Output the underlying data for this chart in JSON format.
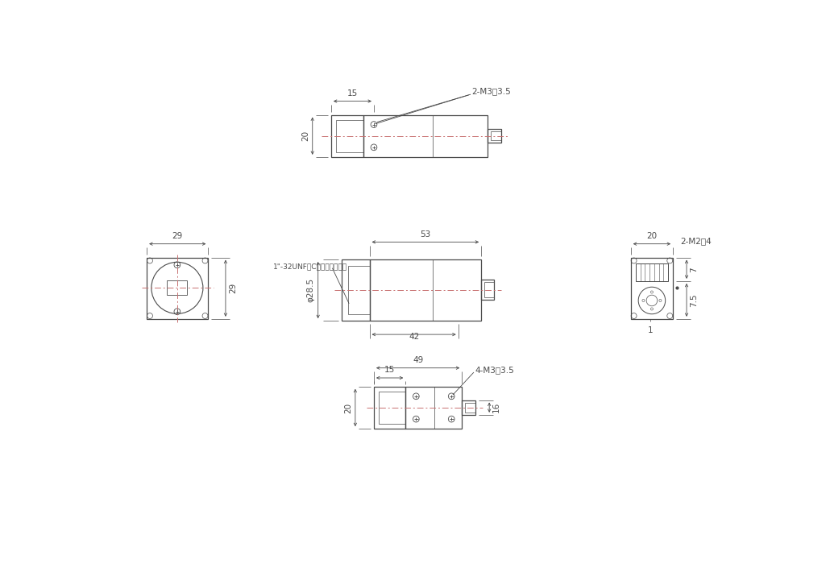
{
  "bg_color": "#ffffff",
  "line_color": "#4a4a4a",
  "dim_color": "#4a4a4a",
  "centerline_color": "#c87070",
  "note_top": "2-M3深3.5",
  "note_front_cmount": "1\"-32UNF（Cマウントネジ）",
  "note_right": "2-M2深4",
  "note_bottom": "4-M3深3.5",
  "dim_15_top": "15",
  "dim_20_top": "20",
  "dim_53": "53",
  "dim_42": "42",
  "dim_dia285": "φ28.5",
  "dim_29w": "29",
  "dim_29h": "29",
  "dim_20_right": "20",
  "dim_7": "7",
  "dim_1": "1",
  "dim_75": "7.5",
  "dim_49": "49",
  "dim_15_bot": "15",
  "dim_20_bot": "20",
  "dim_16": "16"
}
